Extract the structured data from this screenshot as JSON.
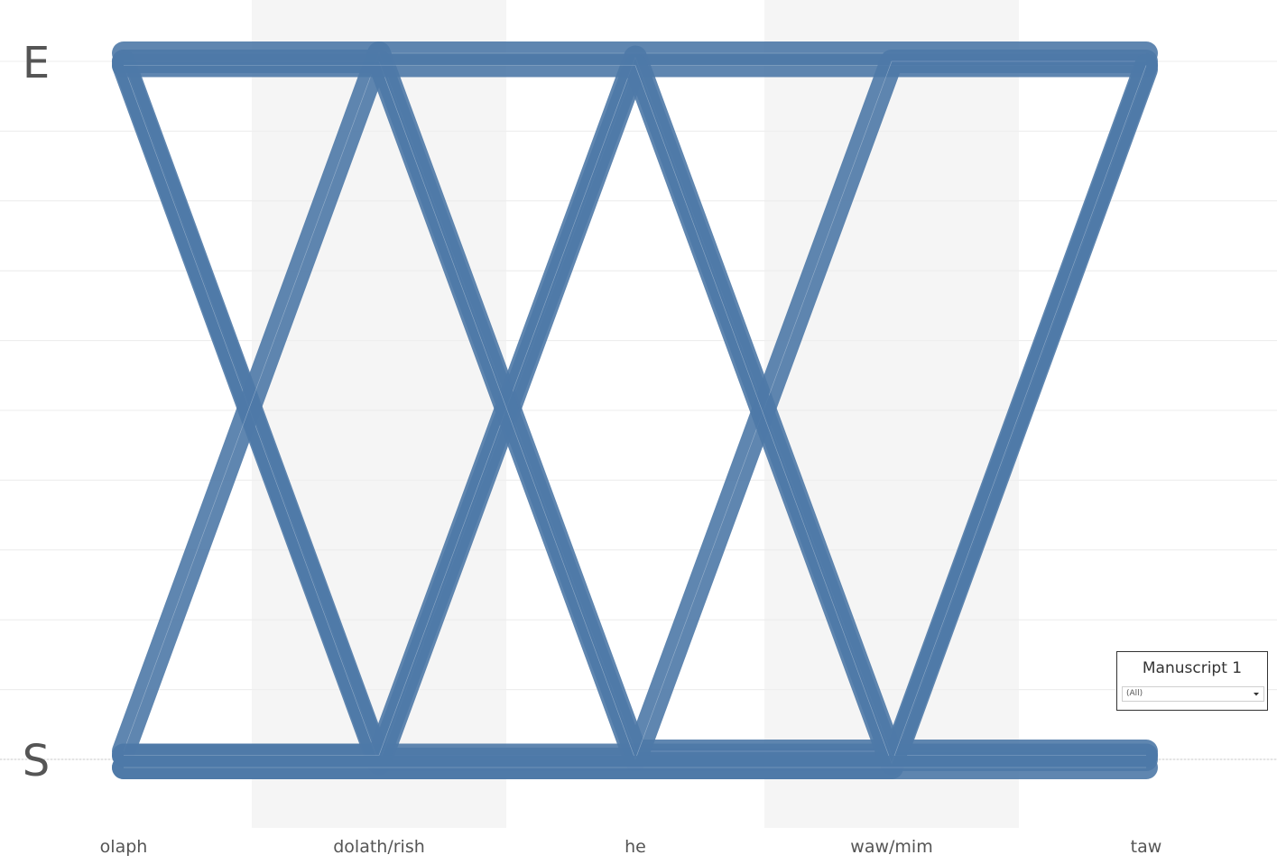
{
  "chart_data": {
    "type": "line",
    "title": "",
    "xlabel": "",
    "ylabel": "",
    "categories": [
      "olaph",
      "dolath/rish",
      "he",
      "waw/mim",
      "taw"
    ],
    "y_categories": [
      "E",
      "S"
    ],
    "grid": true,
    "line_color": "#4e79a7",
    "band_color": "#f5f5f5",
    "series": [
      {
        "values": [
          "E",
          "E",
          "E",
          "E",
          "E"
        ]
      },
      {
        "values": [
          "S",
          "S",
          "S",
          "S",
          "S"
        ]
      },
      {
        "values": [
          "E",
          "S",
          "S",
          "S",
          "S"
        ]
      },
      {
        "values": [
          "E",
          "S",
          "E",
          "E",
          "E"
        ]
      },
      {
        "values": [
          "S",
          "S",
          "S",
          "S",
          "E"
        ]
      },
      {
        "values": [
          "S",
          "E",
          "S",
          "S",
          "S"
        ]
      },
      {
        "values": [
          "S",
          "S",
          "E",
          "S",
          "S"
        ]
      },
      {
        "values": [
          "E",
          "E",
          "S",
          "E",
          "E"
        ]
      },
      {
        "values": [
          "E",
          "E",
          "E",
          "S",
          "E"
        ]
      },
      {
        "values": [
          "S",
          "S",
          "S",
          "S",
          "S"
        ]
      }
    ]
  },
  "filter": {
    "title": "Manuscript 1",
    "value": "(All)"
  }
}
